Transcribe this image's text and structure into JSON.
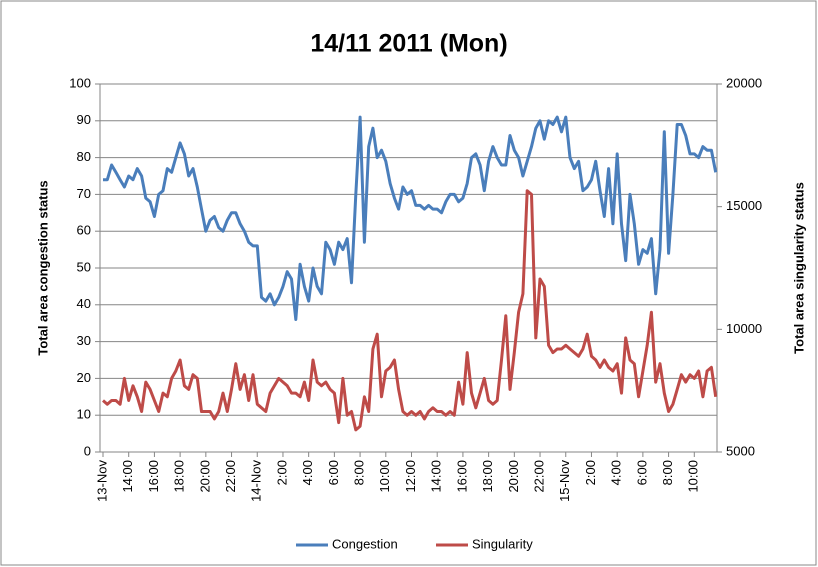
{
  "chart_data": {
    "type": "line",
    "title": "14/11 2011 (Mon)",
    "y_label": "Total area congestion status",
    "y2_label": "Total area singularity  status",
    "categories": [
      "13-Nov",
      null,
      null,
      null,
      null,
      null,
      "14:00",
      null,
      null,
      null,
      null,
      null,
      "16:00",
      null,
      null,
      null,
      null,
      null,
      "18:00",
      null,
      null,
      null,
      null,
      null,
      "20:00",
      null,
      null,
      null,
      null,
      null,
      "22:00",
      null,
      null,
      null,
      null,
      null,
      "14-Nov",
      null,
      null,
      null,
      null,
      null,
      "2:00",
      null,
      null,
      null,
      null,
      null,
      "4:00",
      null,
      null,
      null,
      null,
      null,
      "6:00",
      null,
      null,
      null,
      null,
      null,
      "8:00",
      null,
      null,
      null,
      null,
      null,
      "10:00",
      null,
      null,
      null,
      null,
      null,
      "12:00",
      null,
      null,
      null,
      null,
      null,
      "14:00",
      null,
      null,
      null,
      null,
      null,
      "16:00",
      null,
      null,
      null,
      null,
      null,
      "18:00",
      null,
      null,
      null,
      null,
      null,
      "20:00",
      null,
      null,
      null,
      null,
      null,
      "22:00",
      null,
      null,
      null,
      null,
      null,
      "15-Nov",
      null,
      null,
      null,
      null,
      null,
      "2:00",
      null,
      null,
      null,
      null,
      null,
      "4:00",
      null,
      null,
      null,
      null,
      null,
      "6:00",
      null,
      null,
      null,
      null,
      null,
      "8:00",
      null,
      null,
      null,
      null,
      null,
      "10:00",
      null,
      null,
      null,
      null,
      null
    ],
    "series": [
      {
        "name": "Congestion",
        "color": "#4a7ebb",
        "values": [
          74,
          74,
          78,
          76,
          74,
          72,
          75,
          74,
          77,
          75,
          69,
          68,
          64,
          70,
          71,
          77,
          76,
          80,
          84,
          81,
          75,
          77,
          72,
          66,
          60,
          63,
          64,
          61,
          60,
          63,
          65,
          65,
          62,
          60,
          57,
          56,
          56,
          42,
          41,
          43,
          40,
          42,
          45,
          49,
          47,
          36,
          51,
          45,
          41,
          50,
          45,
          43,
          57,
          55,
          51,
          57,
          55,
          58,
          46,
          70,
          91,
          57,
          83,
          88,
          80,
          82,
          79,
          73,
          69,
          66,
          72,
          70,
          71,
          67,
          67,
          66,
          67,
          66,
          66,
          65,
          68,
          70,
          70,
          68,
          69,
          73,
          80,
          81,
          78,
          71,
          79,
          83,
          80,
          78,
          78,
          86,
          82,
          80,
          75,
          79,
          83,
          88,
          90,
          85,
          90,
          89,
          91,
          87,
          91,
          80,
          77,
          79,
          71,
          72,
          74,
          79,
          71,
          64,
          77,
          62,
          81,
          62,
          52,
          70,
          62,
          51,
          55,
          54,
          58,
          43,
          55,
          87,
          54,
          70,
          89,
          89,
          86,
          81,
          81,
          80,
          83,
          82,
          82,
          76
        ]
      },
      {
        "name": "Singularity",
        "color": "#be4b48",
        "axis": "y2",
        "values": [
          7100,
          6950,
          7100,
          7100,
          6950,
          8000,
          7100,
          7700,
          7250,
          6650,
          7850,
          7550,
          7100,
          6650,
          7400,
          7250,
          8000,
          8300,
          8750,
          7700,
          7550,
          8150,
          8000,
          6650,
          6650,
          6650,
          6350,
          6650,
          7400,
          6650,
          7550,
          8600,
          7550,
          8150,
          7100,
          8150,
          6950,
          6800,
          6650,
          7400,
          7700,
          8000,
          7850,
          7700,
          7400,
          7400,
          7250,
          7850,
          7100,
          8750,
          7850,
          7700,
          7850,
          7550,
          7400,
          6200,
          8000,
          6500,
          6650,
          5900,
          6050,
          7250,
          6650,
          9200,
          9800,
          7250,
          8300,
          8450,
          8750,
          7550,
          6650,
          6500,
          6650,
          6500,
          6650,
          6350,
          6650,
          6800,
          6650,
          6650,
          6500,
          6650,
          6500,
          7850,
          6950,
          9050,
          7400,
          6800,
          7400,
          8000,
          7100,
          6950,
          7100,
          8750,
          10550,
          7550,
          9050,
          10700,
          11450,
          15650,
          15500,
          9650,
          12050,
          11750,
          9350,
          9050,
          9200,
          9200,
          9350,
          9200,
          9050,
          8900,
          9200,
          9800,
          8900,
          8750,
          8450,
          8750,
          8450,
          8300,
          8600,
          7400,
          9650,
          8750,
          8600,
          7250,
          8300,
          9350,
          10700,
          7850,
          8600,
          7400,
          6650,
          6950,
          7550,
          8150,
          7850,
          8150,
          8000,
          8300,
          7250,
          8300,
          8450,
          7250
        ]
      }
    ],
    "ylim": [
      0,
      100
    ],
    "yticks": [
      0,
      10,
      20,
      30,
      40,
      50,
      60,
      70,
      80,
      90,
      100
    ],
    "y2lim": [
      5000,
      20000
    ],
    "y2ticks": [
      5000,
      10000,
      15000,
      20000
    ],
    "grid": true
  }
}
